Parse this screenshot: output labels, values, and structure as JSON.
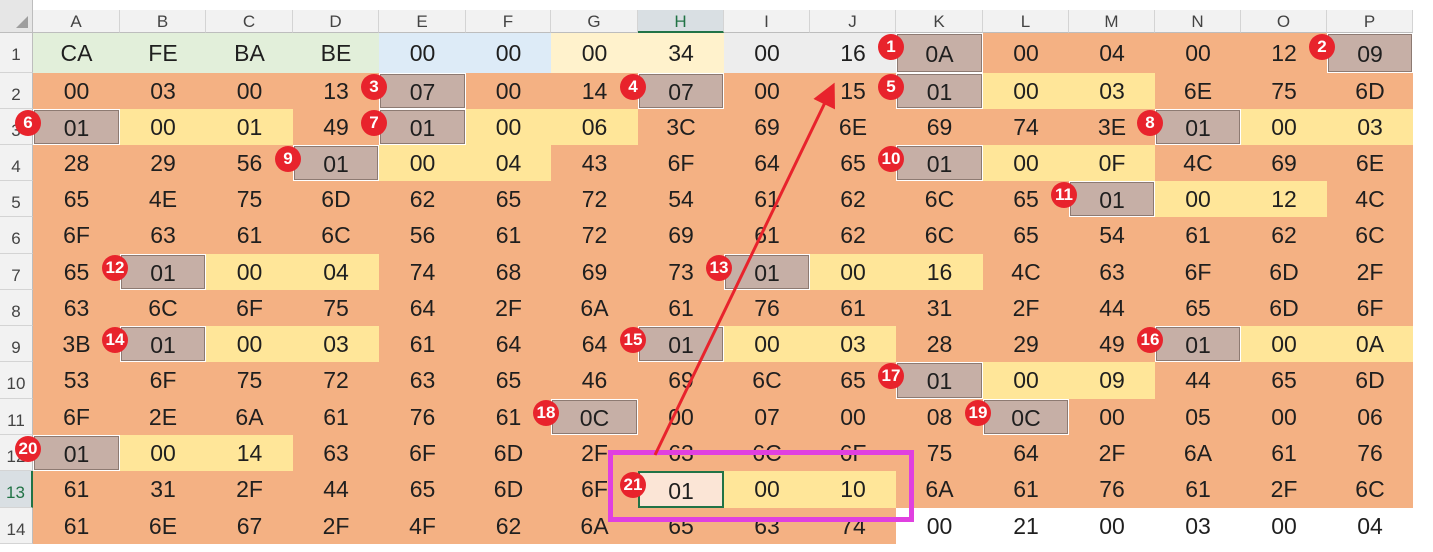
{
  "columns": [
    "A",
    "B",
    "C",
    "D",
    "E",
    "F",
    "G",
    "H",
    "I",
    "J",
    "K",
    "L",
    "M",
    "N",
    "O",
    "P"
  ],
  "rows": [
    "1",
    "2",
    "3",
    "4",
    "5",
    "6",
    "7",
    "8",
    "9",
    "10",
    "11",
    "12",
    "13",
    "14"
  ],
  "grid": [
    [
      "CA",
      "FE",
      "BA",
      "BE",
      "00",
      "00",
      "00",
      "34",
      "00",
      "16",
      "0A",
      "00",
      "04",
      "00",
      "12",
      "09"
    ],
    [
      "00",
      "03",
      "00",
      "13",
      "07",
      "00",
      "14",
      "07",
      "00",
      "15",
      "01",
      "00",
      "03",
      "6E",
      "75",
      "6D"
    ],
    [
      "01",
      "00",
      "01",
      "49",
      "01",
      "00",
      "06",
      "3C",
      "69",
      "6E",
      "69",
      "74",
      "3E",
      "01",
      "00",
      "03"
    ],
    [
      "28",
      "29",
      "56",
      "01",
      "00",
      "04",
      "43",
      "6F",
      "64",
      "65",
      "01",
      "00",
      "0F",
      "4C",
      "69",
      "6E"
    ],
    [
      "65",
      "4E",
      "75",
      "6D",
      "62",
      "65",
      "72",
      "54",
      "61",
      "62",
      "6C",
      "65",
      "01",
      "00",
      "12",
      "4C"
    ],
    [
      "6F",
      "63",
      "61",
      "6C",
      "56",
      "61",
      "72",
      "69",
      "61",
      "62",
      "6C",
      "65",
      "54",
      "61",
      "62",
      "6C"
    ],
    [
      "65",
      "01",
      "00",
      "04",
      "74",
      "68",
      "69",
      "73",
      "01",
      "00",
      "16",
      "4C",
      "63",
      "6F",
      "6D",
      "2F"
    ],
    [
      "63",
      "6C",
      "6F",
      "75",
      "64",
      "2F",
      "6A",
      "61",
      "76",
      "61",
      "31",
      "2F",
      "44",
      "65",
      "6D",
      "6F"
    ],
    [
      "3B",
      "01",
      "00",
      "03",
      "61",
      "64",
      "64",
      "01",
      "00",
      "03",
      "28",
      "29",
      "49",
      "01",
      "00",
      "0A"
    ],
    [
      "53",
      "6F",
      "75",
      "72",
      "63",
      "65",
      "46",
      "69",
      "6C",
      "65",
      "01",
      "00",
      "09",
      "44",
      "65",
      "6D"
    ],
    [
      "6F",
      "2E",
      "6A",
      "61",
      "76",
      "61",
      "0C",
      "00",
      "07",
      "00",
      "08",
      "0C",
      "00",
      "05",
      "00",
      "06"
    ],
    [
      "01",
      "00",
      "14",
      "63",
      "6F",
      "6D",
      "2F",
      "63",
      "6C",
      "6F",
      "75",
      "64",
      "2F",
      "6A",
      "61",
      "76"
    ],
    [
      "61",
      "31",
      "2F",
      "44",
      "65",
      "6D",
      "6F",
      "01",
      "00",
      "10",
      "6A",
      "61",
      "76",
      "61",
      "2F",
      "6C"
    ],
    [
      "61",
      "6E",
      "67",
      "2F",
      "4F",
      "62",
      "6A",
      "65",
      "63",
      "74",
      "00",
      "21",
      "00",
      "03",
      "00",
      "04"
    ]
  ],
  "colors": {
    "header_blue": "#ddebf7",
    "header_green": "#e2efda",
    "header_yellow": "#fff2cc",
    "orange": "#f4b183",
    "yellow": "#ffe699",
    "tag_brown": "#c6afa6",
    "badge_red": "#e8232c",
    "highlight_magenta": "#e040e0",
    "arrow_red": "#e8232c",
    "selection_green": "#217346"
  },
  "selected_cell": "H13",
  "badges": [
    {
      "label": "1",
      "cell": "K1"
    },
    {
      "label": "2",
      "cell": "P1"
    },
    {
      "label": "3",
      "cell": "E2"
    },
    {
      "label": "4",
      "cell": "H2"
    },
    {
      "label": "5",
      "cell": "K2"
    },
    {
      "label": "6",
      "cell": "A3"
    },
    {
      "label": "7",
      "cell": "E3"
    },
    {
      "label": "8",
      "cell": "N3"
    },
    {
      "label": "9",
      "cell": "D4"
    },
    {
      "label": "10",
      "cell": "K4"
    },
    {
      "label": "11",
      "cell": "M5"
    },
    {
      "label": "12",
      "cell": "B7"
    },
    {
      "label": "13",
      "cell": "I7"
    },
    {
      "label": "14",
      "cell": "B9"
    },
    {
      "label": "15",
      "cell": "H9"
    },
    {
      "label": "16",
      "cell": "N9"
    },
    {
      "label": "17",
      "cell": "K10"
    },
    {
      "label": "18",
      "cell": "G11"
    },
    {
      "label": "19",
      "cell": "L11"
    },
    {
      "label": "20",
      "cell": "A12"
    },
    {
      "label": "21",
      "cell": "H13"
    }
  ]
}
